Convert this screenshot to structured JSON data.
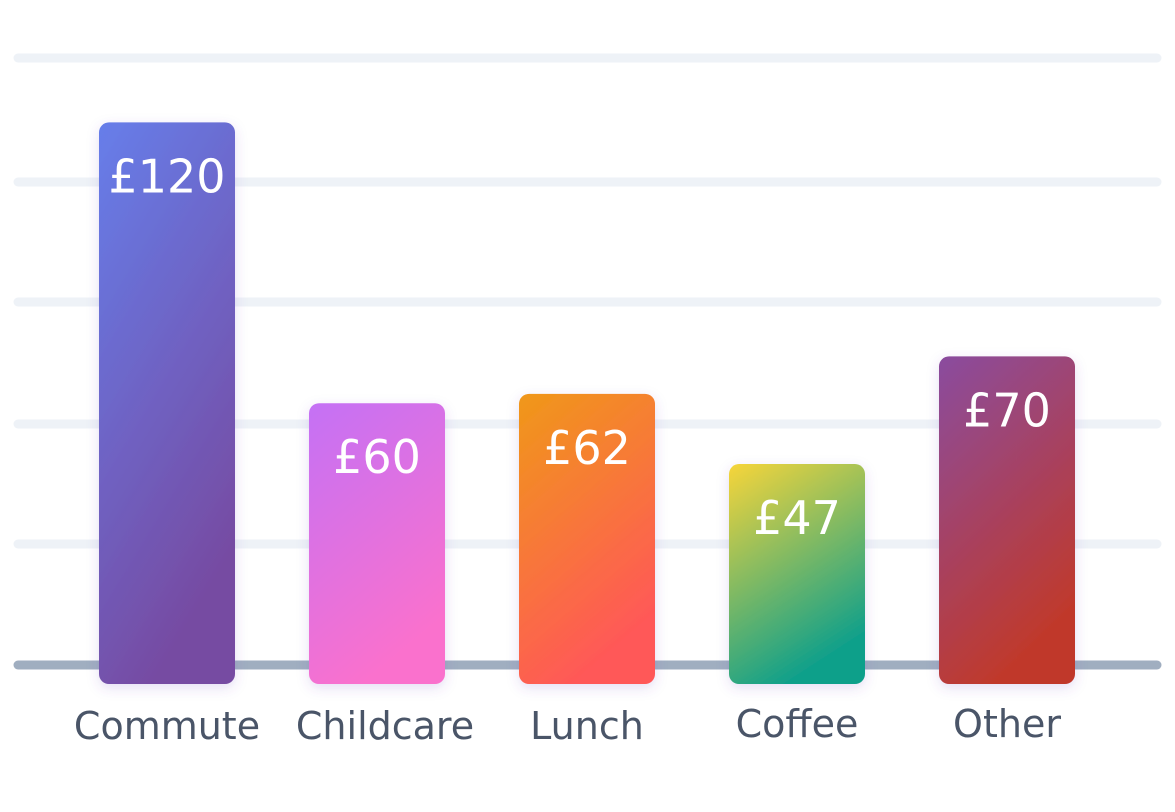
{
  "chart_data": {
    "type": "bar",
    "categories": [
      "Commute",
      "Childcare",
      "Lunch",
      "Coffee",
      "Other"
    ],
    "values": [
      120,
      60,
      62,
      47,
      70
    ],
    "value_labels": [
      "£120",
      "£60",
      "£62",
      "£47",
      "£70"
    ],
    "title": "",
    "xlabel": "",
    "ylabel": "",
    "ylim": [
      0,
      125
    ],
    "grid": true,
    "legend": "none",
    "colors": [
      [
        "#667eea",
        "#764ba2"
      ],
      [
        "#c471f5",
        "#fa71cd"
      ],
      [
        "#f09819",
        "#ff5858"
      ],
      [
        "#f7d53a",
        "#11a08a"
      ],
      [
        "#8a4c9f",
        "#c0392b"
      ]
    ],
    "grid_color": "#eef2f7",
    "baseline_color": "#a0aec0"
  }
}
